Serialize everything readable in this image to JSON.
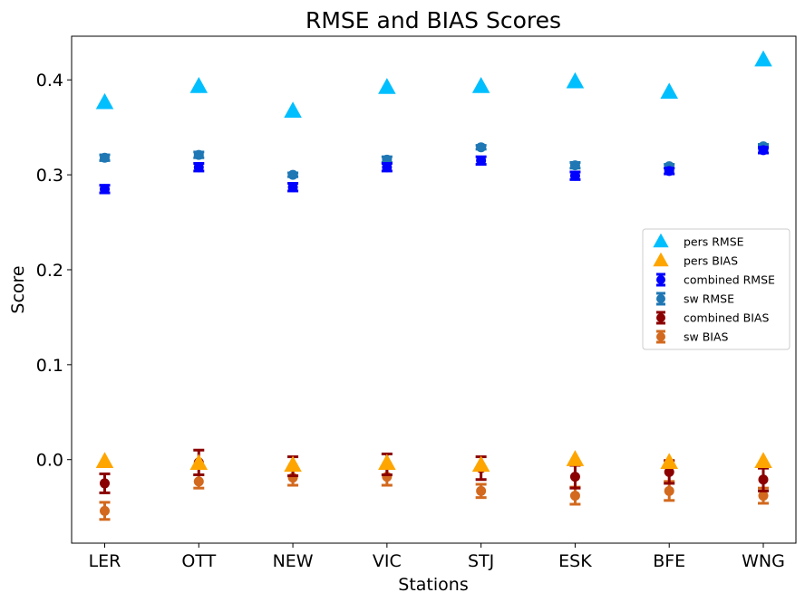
{
  "chart_data": {
    "type": "scatter",
    "title": "RMSE and BIAS Scores",
    "xlabel": "Stations",
    "ylabel": "Score",
    "categories": [
      "LER",
      "OTT",
      "NEW",
      "VIC",
      "STJ",
      "ESK",
      "BFE",
      "WNG"
    ],
    "ylim": [
      -0.088,
      0.446
    ],
    "yticks": [
      0.0,
      0.1,
      0.2,
      0.3,
      0.4
    ],
    "ytick_labels": [
      "0.0",
      "0.1",
      "0.2",
      "0.3",
      "0.4"
    ],
    "grid": false,
    "legend_position": "center-right",
    "series": [
      {
        "name": "pers RMSE",
        "marker": "triangle",
        "color": "#00bfff",
        "values": [
          0.376,
          0.393,
          0.367,
          0.392,
          0.393,
          0.398,
          0.387,
          0.421
        ]
      },
      {
        "name": "pers BIAS",
        "marker": "triangle",
        "color": "#ffa500",
        "values": [
          -0.002,
          -0.004,
          -0.006,
          -0.004,
          -0.006,
          0.0,
          -0.003,
          -0.002
        ]
      },
      {
        "name": "combined RMSE",
        "marker": "circle",
        "color": "#0000ff",
        "values": [
          0.285,
          0.308,
          0.287,
          0.308,
          0.315,
          0.299,
          0.304,
          0.326
        ],
        "errors": [
          0.004,
          0.004,
          0.004,
          0.004,
          0.004,
          0.004,
          0.003,
          0.003
        ]
      },
      {
        "name": "sw RMSE",
        "marker": "circle",
        "color": "#1f77b4",
        "values": [
          0.318,
          0.321,
          0.3,
          0.316,
          0.329,
          0.31,
          0.309,
          0.33
        ],
        "errors": [
          0.003,
          0.003,
          0.002,
          0.003,
          0.002,
          0.003,
          0.002,
          0.002
        ]
      },
      {
        "name": "combined BIAS",
        "marker": "circle",
        "color": "#8b0000",
        "values": [
          -0.025,
          -0.003,
          -0.007,
          -0.005,
          -0.009,
          -0.018,
          -0.013,
          -0.021
        ],
        "errors": [
          0.01,
          0.013,
          0.01,
          0.011,
          0.012,
          0.012,
          0.012,
          0.012
        ]
      },
      {
        "name": "sw BIAS",
        "marker": "circle",
        "color": "#d2691e",
        "values": [
          -0.054,
          -0.023,
          -0.019,
          -0.018,
          -0.033,
          -0.038,
          -0.033,
          -0.038
        ],
        "errors": [
          0.009,
          0.007,
          0.008,
          0.009,
          0.007,
          0.009,
          0.01,
          0.008
        ]
      }
    ]
  }
}
